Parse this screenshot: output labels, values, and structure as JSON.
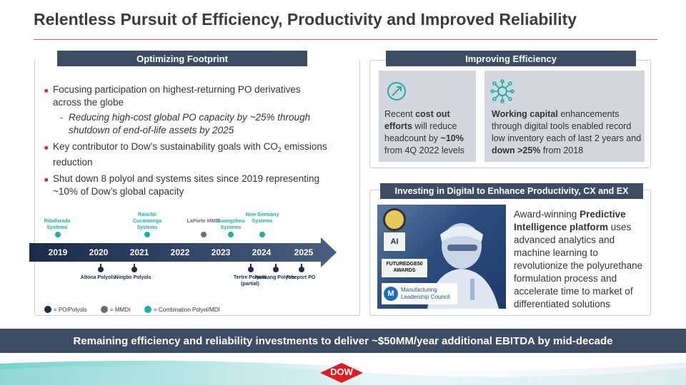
{
  "title": "Relentless Pursuit of Efficiency, Productivity and Improved Reliability",
  "left": {
    "header": "Optimizing Footprint",
    "bullets": [
      "Focusing participation on highest-returning PO derivatives across the globe",
      "Reducing high-cost global PO capacity by ~25% through shutdown of end-of-life assets by 2025",
      "Key contributor to Dow’s sustainability goals with CO",
      "2",
      "emissions reduction",
      "Shut down 8 polyol and systems sites since 2019 representing ~10% of Dow’s global capacity"
    ],
    "timeline": {
      "years": [
        "2019",
        "2020",
        "2021",
        "2022",
        "2023",
        "2024",
        "2025"
      ],
      "above": [
        "Ribaforada Systems",
        "Rancho Cucamonga Systems",
        "LaPorte MMDI",
        "Guangzhou Systems",
        "New Germany Systems"
      ],
      "below": [
        "Altona Polyols",
        "Ningbo Polyols",
        "Tertre Polyols (partial)",
        "Nankang Polyols",
        "Freeport PO"
      ]
    },
    "legend": [
      "= PO/Polyols",
      "= MMDI",
      "= Combination Polyol/MDI"
    ]
  },
  "right": {
    "header": "Improving Efficiency",
    "card1": [
      "Recent",
      "cost out efforts",
      "will reduce headcount by",
      "~10%",
      "from 4Q 2022 levels"
    ],
    "card2": [
      "Working capital",
      "enhancements through digital tools enabled record low inventory each of last 2 years and",
      "down >25%",
      "from 2018"
    ],
    "digital_header": "Investing in Digital to Enhance Productivity, CX and EX",
    "digital_text": [
      "Award-winning",
      "Predictive Intelligence platform",
      "uses advanced analytics and machine learning to revolutionize the polyurethane formulation process and accelerate time to market of differentiated solutions"
    ],
    "badges": {
      "ai": "AI",
      "futureedge": "FUTUREDGE50 AWARDS",
      "mlc": "Manufacturing Leadership Council"
    }
  },
  "banner": "Remaining efficiency and reliability investments to deliver ~$50MM/year additional EBITDA by mid-decade",
  "logo": "DOW",
  "colors": {
    "navy": "#3d4d63",
    "teal": "#1bb0a8",
    "red": "#d61f2a",
    "card": "#d3d6dc"
  }
}
